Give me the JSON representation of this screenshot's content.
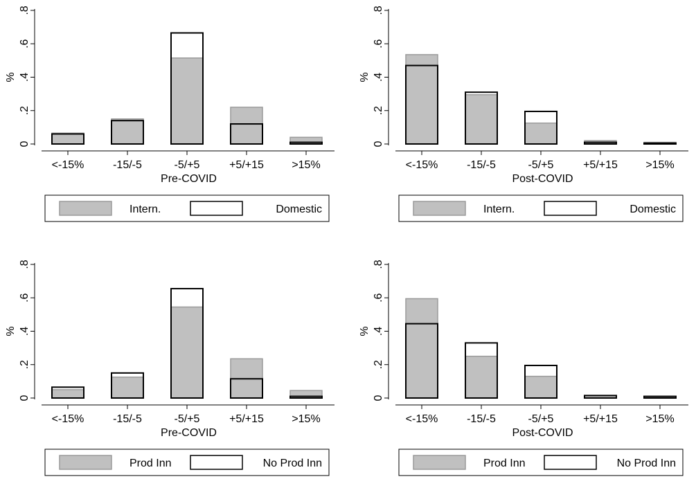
{
  "chart_data": [
    {
      "type": "bar",
      "xlabel": "Pre-COVID",
      "ylabel": "%",
      "ylim": [
        0,
        0.8
      ],
      "yticks": [
        {
          "v": 0,
          "label": "0"
        },
        {
          "v": 0.2,
          "label": ".2"
        },
        {
          "v": 0.4,
          "label": ".4"
        },
        {
          "v": 0.6,
          "label": ".6"
        },
        {
          "v": 0.8,
          "label": ".8"
        }
      ],
      "categories": [
        "<-15%",
        "-15/-5",
        "-5/+5",
        "+5/+15",
        ">15%"
      ],
      "series": [
        {
          "name": "Intern.",
          "style": "filled",
          "color": "#c0c0c0",
          "values": [
            0.065,
            0.15,
            0.515,
            0.22,
            0.04
          ]
        },
        {
          "name": "Domestic",
          "style": "outline",
          "color": "#000000",
          "values": [
            0.06,
            0.14,
            0.665,
            0.12,
            0.01
          ]
        }
      ],
      "legend": "bottom"
    },
    {
      "type": "bar",
      "xlabel": "Post-COVID",
      "ylabel": "%",
      "ylim": [
        0,
        0.8
      ],
      "yticks": [
        {
          "v": 0,
          "label": "0"
        },
        {
          "v": 0.2,
          "label": ".2"
        },
        {
          "v": 0.4,
          "label": ".4"
        },
        {
          "v": 0.6,
          "label": ".6"
        },
        {
          "v": 0.8,
          "label": ".8"
        }
      ],
      "categories": [
        "<-15%",
        "-15/-5",
        "-5/+5",
        "+5/+15",
        ">15%"
      ],
      "series": [
        {
          "name": "Intern.",
          "style": "filled",
          "color": "#c0c0c0",
          "values": [
            0.535,
            0.295,
            0.125,
            0.02,
            0.01
          ]
        },
        {
          "name": "Domestic",
          "style": "outline",
          "color": "#000000",
          "values": [
            0.47,
            0.31,
            0.195,
            0.01,
            0.005
          ]
        }
      ],
      "legend": "bottom"
    },
    {
      "type": "bar",
      "xlabel": "Pre-COVID",
      "ylabel": "%",
      "ylim": [
        0,
        0.8
      ],
      "yticks": [
        {
          "v": 0,
          "label": "0"
        },
        {
          "v": 0.2,
          "label": ".2"
        },
        {
          "v": 0.4,
          "label": ".4"
        },
        {
          "v": 0.6,
          "label": ".6"
        },
        {
          "v": 0.8,
          "label": ".8"
        }
      ],
      "categories": [
        "<-15%",
        "-15/-5",
        "-5/+5",
        "+5/+15",
        ">15%"
      ],
      "series": [
        {
          "name": "Prod Inn",
          "style": "filled",
          "color": "#c0c0c0",
          "values": [
            0.05,
            0.125,
            0.545,
            0.235,
            0.045
          ]
        },
        {
          "name": "No Prod Inn",
          "style": "outline",
          "color": "#000000",
          "values": [
            0.065,
            0.15,
            0.655,
            0.115,
            0.01
          ]
        }
      ],
      "legend": "bottom"
    },
    {
      "type": "bar",
      "xlabel": "Post-COVID",
      "ylabel": "%",
      "ylim": [
        0,
        0.8
      ],
      "yticks": [
        {
          "v": 0,
          "label": "0"
        },
        {
          "v": 0.2,
          "label": ".2"
        },
        {
          "v": 0.4,
          "label": ".4"
        },
        {
          "v": 0.6,
          "label": ".6"
        },
        {
          "v": 0.8,
          "label": ".8"
        }
      ],
      "categories": [
        "<-15%",
        "-15/-5",
        "-5/+5",
        "+5/+15",
        ">15%"
      ],
      "series": [
        {
          "name": "Prod Inn",
          "style": "filled",
          "color": "#c0c0c0",
          "values": [
            0.595,
            0.25,
            0.13,
            0.015,
            0.005
          ]
        },
        {
          "name": "No Prod Inn",
          "style": "outline",
          "color": "#000000",
          "values": [
            0.445,
            0.33,
            0.195,
            0.015,
            0.01
          ]
        }
      ],
      "legend": "bottom"
    }
  ]
}
